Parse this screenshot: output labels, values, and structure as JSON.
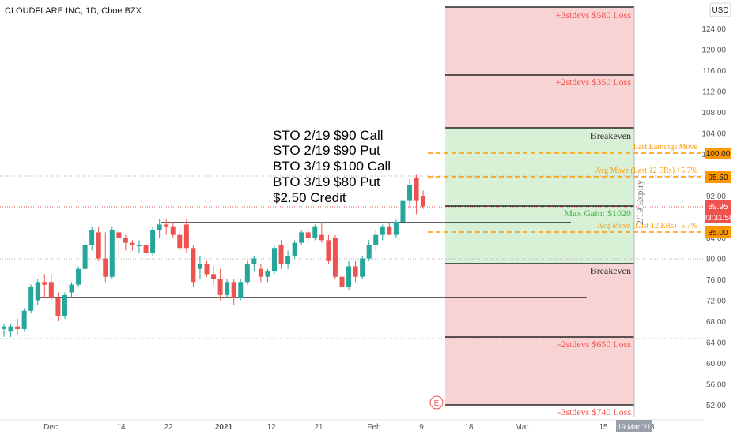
{
  "header": {
    "symbol_title": "CLOUDFLARE INC, 1D, Cboe BZX",
    "currency_button": "USD"
  },
  "colors": {
    "up": "#26a69a",
    "down": "#ef5350",
    "loss_zone": "#f8d3d3",
    "gain_zone": "#d8f0d6",
    "loss_text": "#ef5350",
    "gain_text": "#4caf50",
    "orange": "#ff9800",
    "line": "#000000"
  },
  "annotations": {
    "trade_lines": [
      "STO 2/19 $90 Call",
      "STO 2/19 $90 Put",
      "BTO 3/19 $100 Call",
      "BTO 3/19 $80 Put",
      "$2.50 Credit"
    ],
    "plus3": "+3stdevs $580 Loss",
    "plus2": "+2stdevs $350 Loss",
    "breakeven_upper": "Breakeven",
    "breakeven_lower": "Breakeven",
    "max_gain": "Max Gain: $1020",
    "last_earnings": "Last Earnings Move",
    "avg_move_up": "Avg Move (Last 12 ERs) +5.7%",
    "avg_move_down": "Avg Move (Last 12 ERs) -5.7%",
    "minus2": "-2stdevs $650 Loss",
    "minus3": "-3stdevs $740 Loss",
    "expiry": "2/19 Expiry",
    "earnings_marker": "E"
  },
  "price_scale": {
    "ticks": [
      "124.00",
      "120.00",
      "116.00",
      "112.00",
      "108.00",
      "104.00",
      "100.00",
      "96.00",
      "92.00",
      "88.00",
      "84.00",
      "80.00",
      "76.00",
      "72.00",
      "68.00",
      "64.00",
      "60.00",
      "56.00",
      "52.00"
    ],
    "badges": {
      "b100": "100.00",
      "b95": "95.50",
      "last": "89.95",
      "countdown": "03:31:58",
      "b85": "85.00"
    }
  },
  "time_scale": {
    "ticks": [
      "Dec",
      "14",
      "22",
      "2021",
      "12",
      "21",
      "Feb",
      "9",
      "18",
      "Mar",
      "15",
      "23"
    ],
    "highlight": "19 Mar '21"
  },
  "chart_data": {
    "type": "candlestick",
    "title": "CLOUDFLARE INC, 1D, Cboe BZX",
    "ylim": [
      50,
      128
    ],
    "y_ticks": [
      124,
      120,
      116,
      112,
      108,
      104,
      100,
      96,
      92,
      88,
      84,
      80,
      76,
      72,
      68,
      64,
      60,
      56,
      52
    ],
    "x_ticks": [
      "Dec",
      "14",
      "22",
      "2021",
      "12",
      "21",
      "Feb",
      "9",
      "18",
      "Mar",
      "15",
      "23"
    ],
    "last_price": 89.95,
    "candles": [
      {
        "o": 66.5,
        "h": 67.5,
        "l": 65.0,
        "c": 67.0
      },
      {
        "o": 66.0,
        "h": 67.5,
        "l": 65.0,
        "c": 67.0
      },
      {
        "o": 67.0,
        "h": 68.5,
        "l": 65.5,
        "c": 66.5
      },
      {
        "o": 66.5,
        "h": 70.5,
        "l": 66.0,
        "c": 70.0
      },
      {
        "o": 70.0,
        "h": 75.0,
        "l": 69.5,
        "c": 74.5
      },
      {
        "o": 72.0,
        "h": 76.0,
        "l": 71.0,
        "c": 75.5
      },
      {
        "o": 75.5,
        "h": 77.0,
        "l": 72.5,
        "c": 75.0
      },
      {
        "o": 75.5,
        "h": 77.0,
        "l": 72.0,
        "c": 72.5
      },
      {
        "o": 72.5,
        "h": 73.5,
        "l": 68.0,
        "c": 69.0
      },
      {
        "o": 69.0,
        "h": 73.5,
        "l": 68.5,
        "c": 73.0
      },
      {
        "o": 73.5,
        "h": 75.5,
        "l": 72.5,
        "c": 75.0
      },
      {
        "o": 75.0,
        "h": 78.5,
        "l": 74.5,
        "c": 78.0
      },
      {
        "o": 78.0,
        "h": 83.5,
        "l": 77.5,
        "c": 82.5
      },
      {
        "o": 82.5,
        "h": 86.0,
        "l": 81.5,
        "c": 85.5
      },
      {
        "o": 85.0,
        "h": 86.0,
        "l": 79.5,
        "c": 80.0
      },
      {
        "o": 80.0,
        "h": 85.0,
        "l": 75.5,
        "c": 76.5
      },
      {
        "o": 76.5,
        "h": 86.0,
        "l": 76.0,
        "c": 85.5
      },
      {
        "o": 85.0,
        "h": 85.5,
        "l": 80.0,
        "c": 84.0
      },
      {
        "o": 84.0,
        "h": 84.5,
        "l": 81.5,
        "c": 83.0
      },
      {
        "o": 83.0,
        "h": 83.5,
        "l": 81.5,
        "c": 82.5
      },
      {
        "o": 82.5,
        "h": 83.5,
        "l": 81.0,
        "c": 82.5
      },
      {
        "o": 82.5,
        "h": 84.0,
        "l": 80.5,
        "c": 81.0
      },
      {
        "o": 81.0,
        "h": 86.0,
        "l": 80.5,
        "c": 85.5
      },
      {
        "o": 85.5,
        "h": 87.5,
        "l": 84.0,
        "c": 86.5
      },
      {
        "o": 86.5,
        "h": 87.5,
        "l": 84.5,
        "c": 86.0
      },
      {
        "o": 86.0,
        "h": 87.0,
        "l": 84.0,
        "c": 84.5
      },
      {
        "o": 84.5,
        "h": 85.5,
        "l": 81.5,
        "c": 82.0
      },
      {
        "o": 86.5,
        "h": 87.5,
        "l": 81.0,
        "c": 82.0
      },
      {
        "o": 82.0,
        "h": 82.5,
        "l": 74.5,
        "c": 75.5
      },
      {
        "o": 78.0,
        "h": 80.5,
        "l": 76.0,
        "c": 79.0
      },
      {
        "o": 79.0,
        "h": 79.5,
        "l": 76.5,
        "c": 77.0
      },
      {
        "o": 77.0,
        "h": 78.5,
        "l": 75.0,
        "c": 76.0
      },
      {
        "o": 76.0,
        "h": 78.0,
        "l": 72.0,
        "c": 73.0
      },
      {
        "o": 73.0,
        "h": 76.0,
        "l": 72.5,
        "c": 75.5
      },
      {
        "o": 75.5,
        "h": 76.0,
        "l": 71.0,
        "c": 72.5
      },
      {
        "o": 72.5,
        "h": 76.0,
        "l": 72.0,
        "c": 75.5
      },
      {
        "o": 75.5,
        "h": 79.5,
        "l": 75.0,
        "c": 79.0
      },
      {
        "o": 79.0,
        "h": 80.5,
        "l": 77.5,
        "c": 80.0
      },
      {
        "o": 78.0,
        "h": 79.0,
        "l": 75.5,
        "c": 76.5
      },
      {
        "o": 76.5,
        "h": 78.0,
        "l": 75.5,
        "c": 77.5
      },
      {
        "o": 77.5,
        "h": 82.5,
        "l": 77.0,
        "c": 82.0
      },
      {
        "o": 82.5,
        "h": 83.5,
        "l": 78.0,
        "c": 79.0
      },
      {
        "o": 79.0,
        "h": 81.5,
        "l": 78.0,
        "c": 80.5
      },
      {
        "o": 80.5,
        "h": 83.5,
        "l": 80.0,
        "c": 83.0
      },
      {
        "o": 83.0,
        "h": 85.5,
        "l": 82.5,
        "c": 85.0
      },
      {
        "o": 85.0,
        "h": 85.5,
        "l": 83.0,
        "c": 84.0
      },
      {
        "o": 84.0,
        "h": 86.5,
        "l": 83.5,
        "c": 86.0
      },
      {
        "o": 84.5,
        "h": 87.0,
        "l": 83.0,
        "c": 83.5
      },
      {
        "o": 83.5,
        "h": 84.5,
        "l": 79.0,
        "c": 79.5
      },
      {
        "o": 84.0,
        "h": 84.5,
        "l": 76.0,
        "c": 76.5
      },
      {
        "o": 76.5,
        "h": 77.0,
        "l": 71.5,
        "c": 74.5
      },
      {
        "o": 74.5,
        "h": 79.5,
        "l": 74.0,
        "c": 78.5
      },
      {
        "o": 78.5,
        "h": 79.5,
        "l": 75.5,
        "c": 76.5
      },
      {
        "o": 76.5,
        "h": 80.5,
        "l": 76.0,
        "c": 80.0
      },
      {
        "o": 80.0,
        "h": 83.5,
        "l": 79.5,
        "c": 82.5
      },
      {
        "o": 82.5,
        "h": 85.5,
        "l": 81.5,
        "c": 84.5
      },
      {
        "o": 84.5,
        "h": 86.5,
        "l": 83.5,
        "c": 86.0
      },
      {
        "o": 86.0,
        "h": 87.0,
        "l": 84.5,
        "c": 84.5
      },
      {
        "o": 84.5,
        "h": 87.5,
        "l": 84.0,
        "c": 87.0
      },
      {
        "o": 87.0,
        "h": 91.5,
        "l": 86.5,
        "c": 91.0
      },
      {
        "o": 91.0,
        "h": 95.0,
        "l": 89.5,
        "c": 94.0
      },
      {
        "o": 95.5,
        "h": 96.0,
        "l": 88.5,
        "c": 91.0
      },
      {
        "o": 92.0,
        "h": 93.0,
        "l": 89.5,
        "c": 89.95
      }
    ]
  }
}
